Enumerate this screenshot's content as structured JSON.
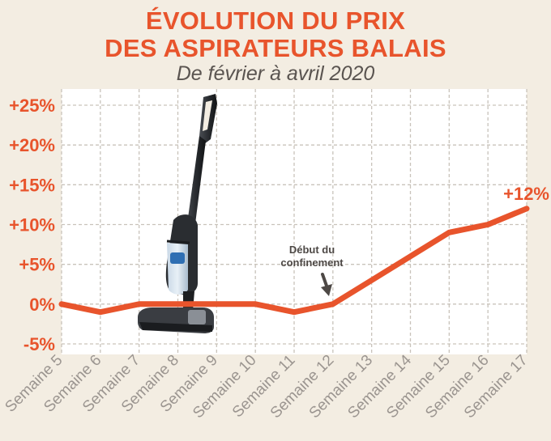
{
  "chart_data": {
    "type": "line",
    "title_line1": "ÉVOLUTION DU PRIX",
    "title_line2": "DES ASPIRATEURS BALAIS",
    "subtitle": "De février à avril 2020",
    "categories": [
      "Semaine 5",
      "Semaine 6",
      "Semaine 7",
      "Semaine 8",
      "Semaine 9",
      "Semaine 10",
      "Semaine 11",
      "Semaine 12",
      "Semaine 13",
      "Semaine 14",
      "Semaine 15",
      "Semaine 16",
      "Semaine 17"
    ],
    "values": [
      0,
      -1,
      0,
      0,
      0,
      0,
      -1,
      0,
      3,
      6,
      9,
      10,
      12
    ],
    "ylim": [
      -5,
      25
    ],
    "yticks": [
      -5,
      0,
      5,
      10,
      15,
      20,
      25
    ],
    "ytick_labels": [
      "-5%",
      "0%",
      "+5%",
      "+10%",
      "+15%",
      "+20%",
      "+25%"
    ],
    "end_label": "+12%",
    "annotation": {
      "line1": "Début du",
      "line2": "confinement",
      "category_index": 7
    },
    "grid": true,
    "colors": {
      "line": "#e8542c",
      "grid": "#c9c3bb",
      "plot_bg": "#ffffff",
      "page_bg": "#f3ede2"
    }
  }
}
